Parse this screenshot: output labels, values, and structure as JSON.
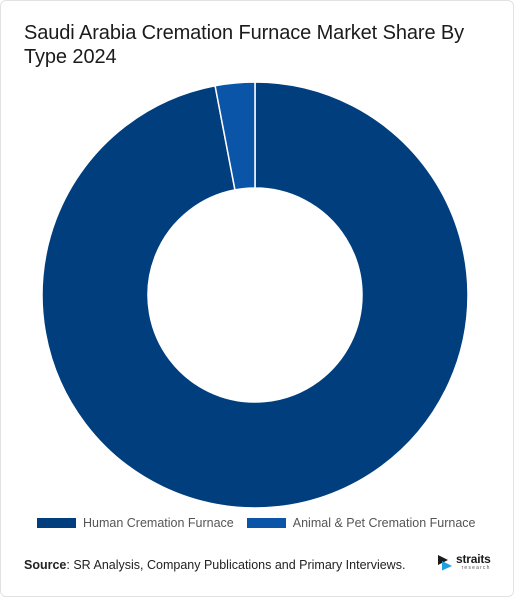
{
  "title": "Saudi Arabia Cremation Furnace Market Share By Type 2024",
  "source": {
    "label": "Source",
    "text": ": SR Analysis, Company Publications and Primary Interviews."
  },
  "logo": {
    "word": "straits",
    "sub": "research"
  },
  "chart_data": {
    "type": "pie",
    "title": "Saudi Arabia Cremation Furnace Market Share By Type 2024",
    "donut": true,
    "legend_position": "bottom",
    "categories": [
      "Human Cremation Furnace",
      "Animal & Pet Cremation Furnace"
    ],
    "values": [
      97,
      3
    ],
    "colors": [
      "#003e7e",
      "#0a55a8"
    ]
  }
}
